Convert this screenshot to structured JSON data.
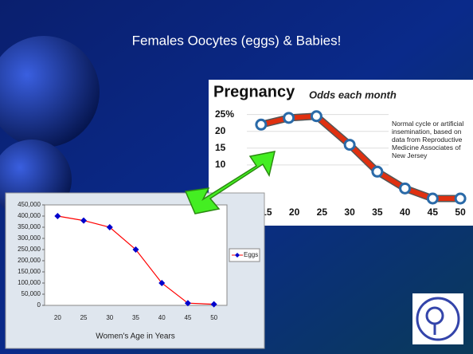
{
  "slide_title": "Females Oocytes (eggs) & Babies!",
  "chart_data": [
    {
      "type": "line",
      "title": "Pregnancy",
      "subtitle": "Odds each month",
      "annotation": "Normal cycle or artificial insemination, based on data from Reproductive Medicine Associates of New Jersey",
      "x": [
        14,
        19,
        24,
        30,
        35,
        40,
        45,
        50
      ],
      "values": [
        22,
        24,
        24.5,
        16,
        8,
        3,
        0,
        0
      ],
      "color": "#e03010",
      "xlim": [
        12,
        52
      ],
      "xticks": [
        15,
        20,
        25,
        30,
        35,
        40,
        45,
        50
      ],
      "ylim": [
        0,
        28
      ],
      "yticks": [
        10,
        15,
        20,
        {
          "value": 25,
          "label": "25%"
        }
      ],
      "grid": true
    },
    {
      "type": "line",
      "x_label": "Women's Age in Years",
      "categories": [
        "20",
        "25",
        "30",
        "35",
        "40",
        "45",
        "50"
      ],
      "series": [
        {
          "name": "Eggs",
          "color": "#ff0000",
          "marker_color": "#0000cc",
          "values": [
            400000,
            380000,
            350000,
            250000,
            100000,
            10000,
            5000
          ]
        }
      ],
      "ylim": [
        0,
        450000
      ],
      "yticks": [
        0,
        {
          "value": 50000,
          "label": "50,000"
        },
        {
          "value": 100000,
          "label": "100,000"
        },
        {
          "value": 150000,
          "label": "150,000"
        },
        {
          "value": 200000,
          "label": "200,000"
        },
        {
          "value": 250000,
          "label": "250,000"
        },
        {
          "value": 300000,
          "label": "300,000"
        },
        {
          "value": 350000,
          "label": "350,000"
        },
        {
          "value": 400000,
          "label": "400,000"
        },
        {
          "value": 450000,
          "label": "450,000"
        }
      ],
      "legend": "right"
    }
  ]
}
